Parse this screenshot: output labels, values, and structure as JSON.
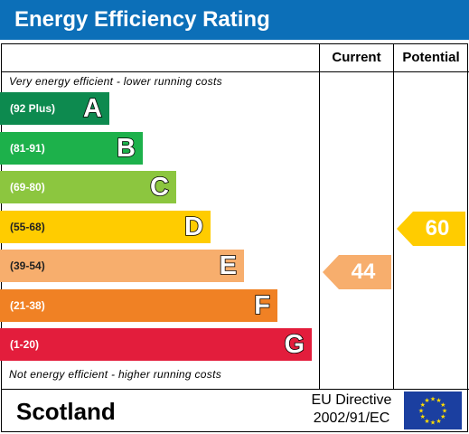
{
  "title": "Energy Efficiency Rating",
  "columns": {
    "current": "Current",
    "potential": "Potential"
  },
  "notes": {
    "top": "Very energy efficient - lower running costs",
    "bottom": "Not energy efficient - higher running costs"
  },
  "bands": [
    {
      "letter": "A",
      "range": "(92 Plus)",
      "color": "#0d8a4f"
    },
    {
      "letter": "B",
      "range": "(81-91)",
      "color": "#1db14b"
    },
    {
      "letter": "C",
      "range": "(69-80)",
      "color": "#8cc63f"
    },
    {
      "letter": "D",
      "range": "(55-68)",
      "color": "#ffcc00"
    },
    {
      "letter": "E",
      "range": "(39-54)",
      "color": "#f7ae6d"
    },
    {
      "letter": "F",
      "range": "(21-38)",
      "color": "#f08124"
    },
    {
      "letter": "G",
      "range": "(1-20)",
      "color": "#e31d3c"
    }
  ],
  "ratings": {
    "current": {
      "value": "44",
      "band": "E",
      "color": "#f7ae6d"
    },
    "potential": {
      "value": "60",
      "band": "D",
      "color": "#ffcc00"
    }
  },
  "footer": {
    "region": "Scotland",
    "directive_line1": "EU Directive",
    "directive_line2": "2002/91/EC",
    "flag_icon": "eu-flag-icon"
  }
}
